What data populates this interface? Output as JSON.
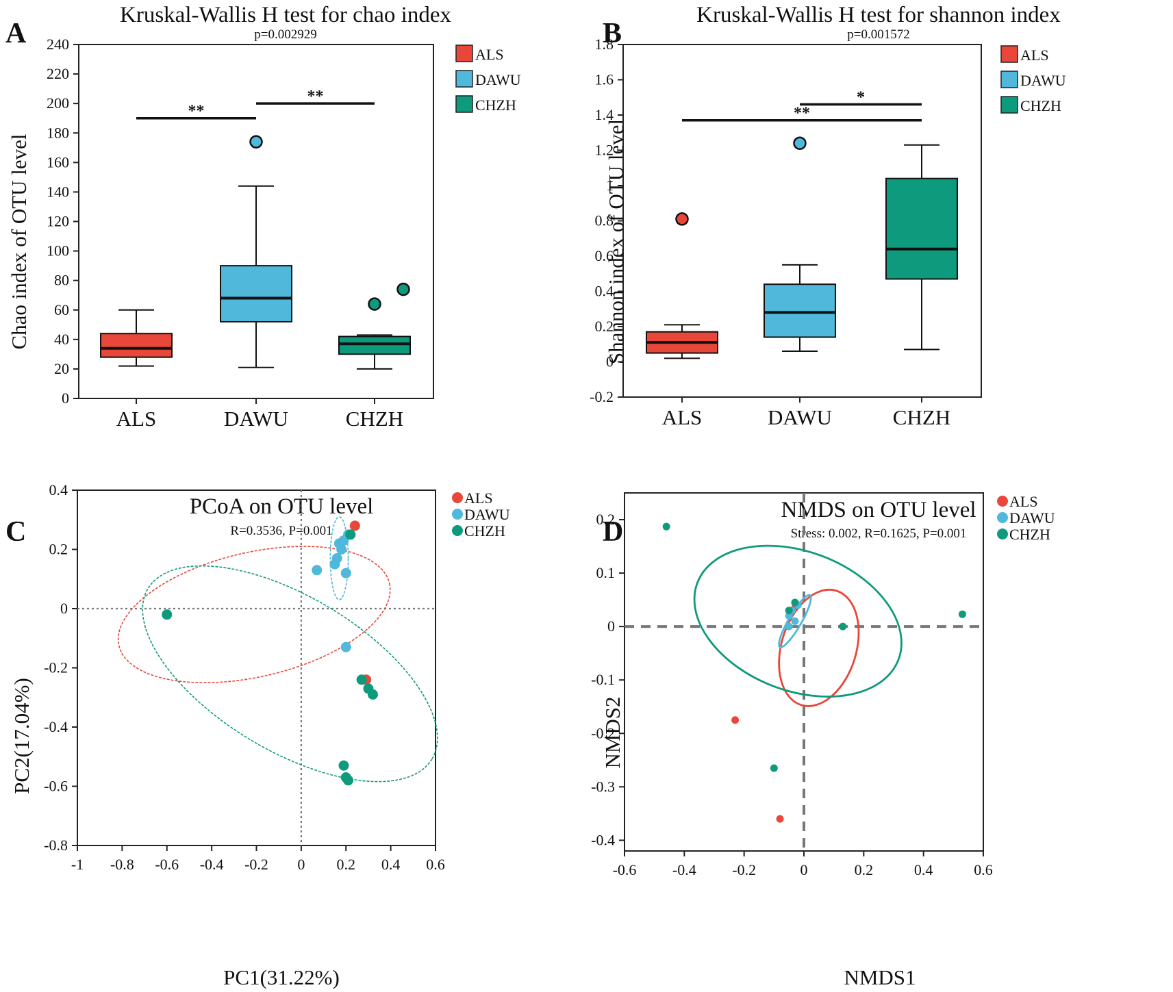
{
  "chart_data": [
    {
      "type": "box",
      "panel_label": "A",
      "title": "Kruskal-Wallis H test for chao index",
      "subtitle": "p=0.002929",
      "xlabel": "",
      "ylabel": "Chao index of OTU level",
      "ylim": [
        0,
        240
      ],
      "yticks": [
        0,
        20,
        40,
        60,
        80,
        100,
        120,
        140,
        160,
        180,
        200,
        220,
        240
      ],
      "ytick_labels": [
        "0",
        "20",
        "40",
        "60",
        "80",
        "100",
        "120",
        "140",
        "160",
        "180",
        "200",
        "220",
        "240"
      ],
      "categories": [
        "ALS",
        "DAWU",
        "CHZH"
      ],
      "legend": [
        "ALS",
        "DAWU",
        "CHZH"
      ],
      "series": [
        {
          "name": "ALS",
          "color": "#E8473A",
          "min": 22,
          "q1": 28,
          "median": 34,
          "q3": 44,
          "max": 60,
          "outliers": []
        },
        {
          "name": "DAWU",
          "color": "#4FB8DB",
          "min": 21,
          "q1": 52,
          "median": 68,
          "q3": 90,
          "max": 144,
          "outliers": [
            174
          ]
        },
        {
          "name": "CHZH",
          "color": "#0E9A7C",
          "min": 20,
          "q1": 30,
          "median": 37,
          "q3": 42,
          "max": 43,
          "outliers": [
            64,
            74
          ]
        }
      ],
      "significance": [
        {
          "from": "ALS",
          "to": "DAWU",
          "y": 190,
          "label": "**"
        },
        {
          "from": "DAWU",
          "to": "CHZH",
          "y": 200,
          "label": "**"
        }
      ]
    },
    {
      "type": "box",
      "panel_label": "B",
      "title": "Kruskal-Wallis H test for shannon index",
      "subtitle": "p=0.001572",
      "xlabel": "",
      "ylabel": "Shannon index of OTU level",
      "ylim": [
        -0.2,
        1.8
      ],
      "yticks": [
        -0.2,
        0,
        0.2,
        0.4,
        0.6,
        0.8,
        1,
        1.2,
        1.4,
        1.6,
        1.8
      ],
      "ytick_labels": [
        "-0.2",
        "0",
        "0.2",
        "0.4",
        "0.6",
        "0.8",
        "1",
        "1.2",
        "1.4",
        "1.6",
        "1.8"
      ],
      "categories": [
        "ALS",
        "DAWU",
        "CHZH"
      ],
      "legend": [
        "ALS",
        "DAWU",
        "CHZH"
      ],
      "series": [
        {
          "name": "ALS",
          "color": "#E8473A",
          "min": 0.02,
          "q1": 0.05,
          "median": 0.11,
          "q3": 0.17,
          "max": 0.21,
          "outliers": [
            0.81
          ]
        },
        {
          "name": "DAWU",
          "color": "#4FB8DB",
          "min": 0.06,
          "q1": 0.14,
          "median": 0.28,
          "q3": 0.44,
          "max": 0.55,
          "outliers": [
            1.24
          ]
        },
        {
          "name": "CHZH",
          "color": "#0E9A7C",
          "min": 0.07,
          "q1": 0.47,
          "median": 0.64,
          "q3": 1.04,
          "max": 1.23,
          "outliers": []
        }
      ],
      "significance": [
        {
          "from": "DAWU",
          "to": "CHZH",
          "y": 1.46,
          "label": "*"
        },
        {
          "from": "ALS",
          "to": "CHZH",
          "y": 1.37,
          "label": "**"
        }
      ]
    },
    {
      "type": "scatter",
      "panel_label": "C",
      "title": "PCoA on OTU level",
      "subtitle": "R=0.3536, P=0.001",
      "xlabel": "PC1(31.22%)",
      "ylabel": "PC2(17.04%)",
      "xlim": [
        -1,
        0.6
      ],
      "ylim": [
        -0.8,
        0.4
      ],
      "xticks": [
        -1,
        -0.8,
        -0.6,
        -0.4,
        -0.2,
        0,
        0.2,
        0.4,
        0.6
      ],
      "xtick_labels": [
        "-1",
        "-0.8",
        "-0.6",
        "-0.4",
        "-0.2",
        "0",
        "0.2",
        "0.4",
        "0.6"
      ],
      "yticks": [
        -0.8,
        -0.6,
        -0.4,
        -0.2,
        0,
        0.2,
        0.4
      ],
      "ytick_labels": [
        "-0.8",
        "-0.6",
        "-0.4",
        "-0.2",
        "0",
        "0.2",
        "0.4"
      ],
      "legend": [
        "ALS",
        "DAWU",
        "CHZH"
      ],
      "series": [
        {
          "name": "ALS",
          "color": "#E8473A",
          "points": [
            [
              0.24,
              0.28
            ],
            [
              0.29,
              -0.24
            ]
          ]
        },
        {
          "name": "DAWU",
          "color": "#4FB8DB",
          "points": [
            [
              0.07,
              0.13
            ],
            [
              0.15,
              0.15
            ],
            [
              0.16,
              0.17
            ],
            [
              0.18,
              0.2
            ],
            [
              0.17,
              0.22
            ],
            [
              0.19,
              0.23
            ],
            [
              0.2,
              0.12
            ],
            [
              0.21,
              0.25
            ],
            [
              0.22,
              0.25
            ],
            [
              0.2,
              -0.13
            ]
          ]
        },
        {
          "name": "CHZH",
          "color": "#0E9A7C",
          "points": [
            [
              -0.6,
              -0.02
            ],
            [
              0.22,
              0.25
            ],
            [
              0.27,
              -0.24
            ],
            [
              0.3,
              -0.27
            ],
            [
              0.32,
              -0.29
            ],
            [
              0.19,
              -0.53
            ],
            [
              0.2,
              -0.57
            ],
            [
              0.21,
              -0.58
            ]
          ]
        }
      ],
      "ellipses": [
        {
          "group": "ALS",
          "cx": -0.21,
          "cy": -0.02,
          "rx": 0.62,
          "ry": 0.21,
          "angle_deg": 13
        },
        {
          "group": "DAWU",
          "cx": 0.17,
          "cy": 0.17,
          "rx": 0.04,
          "ry": 0.14,
          "angle_deg": 0
        },
        {
          "group": "CHZH",
          "cx": -0.05,
          "cy": -0.22,
          "rx": 0.74,
          "ry": 0.26,
          "angle_deg": -31
        }
      ]
    },
    {
      "type": "scatter",
      "panel_label": "D",
      "title": "NMDS on OTU level",
      "subtitle": "Stress: 0.002, R=0.1625, P=0.001",
      "xlabel": "NMDS1",
      "ylabel": "NMDS2",
      "xlim": [
        -0.6,
        0.6
      ],
      "ylim": [
        -0.42,
        0.25
      ],
      "xticks": [
        -0.6,
        -0.4,
        -0.2,
        0,
        0.2,
        0.4,
        0.6
      ],
      "xtick_labels": [
        "-0.6",
        "-0.4",
        "-0.2",
        "0",
        "0.2",
        "0.4",
        "0.6"
      ],
      "yticks": [
        -0.4,
        -0.3,
        -0.2,
        -0.1,
        0,
        0.1,
        0.2
      ],
      "ytick_labels": [
        "-0.4",
        "-0.3",
        "-0.2",
        "-0.1",
        "0",
        "0.1",
        "0.2"
      ],
      "legend": [
        "ALS",
        "DAWU",
        "CHZH"
      ],
      "series": [
        {
          "name": "ALS",
          "color": "#E8473A",
          "points": [
            [
              -0.23,
              -0.175
            ],
            [
              -0.08,
              -0.36
            ],
            [
              -0.03,
              0.035
            ]
          ]
        },
        {
          "name": "DAWU",
          "color": "#4FB8DB",
          "points": [
            [
              -0.05,
              0.02
            ],
            [
              -0.04,
              0.03
            ],
            [
              -0.02,
              0.04
            ],
            [
              -0.03,
              0.01
            ],
            [
              -0.05,
              0.0
            ]
          ]
        },
        {
          "name": "CHZH",
          "color": "#0E9A7C",
          "points": [
            [
              -0.46,
              0.187
            ],
            [
              0.53,
              0.023
            ],
            [
              0.13,
              0.0
            ],
            [
              -0.1,
              -0.265
            ],
            [
              -0.05,
              0.03
            ],
            [
              -0.03,
              0.045
            ]
          ]
        }
      ],
      "ellipses": [
        {
          "group": "ALS",
          "cx": 0.05,
          "cy": -0.04,
          "rx": 0.2,
          "ry": 0.07,
          "angle_deg": 73
        },
        {
          "group": "DAWU",
          "cx": -0.03,
          "cy": 0.01,
          "rx": 0.1,
          "ry": 0.012,
          "angle_deg": 60
        },
        {
          "group": "CHZH",
          "cx": -0.02,
          "cy": 0.01,
          "rx": 0.36,
          "ry": 0.13,
          "angle_deg": -21
        }
      ]
    }
  ]
}
